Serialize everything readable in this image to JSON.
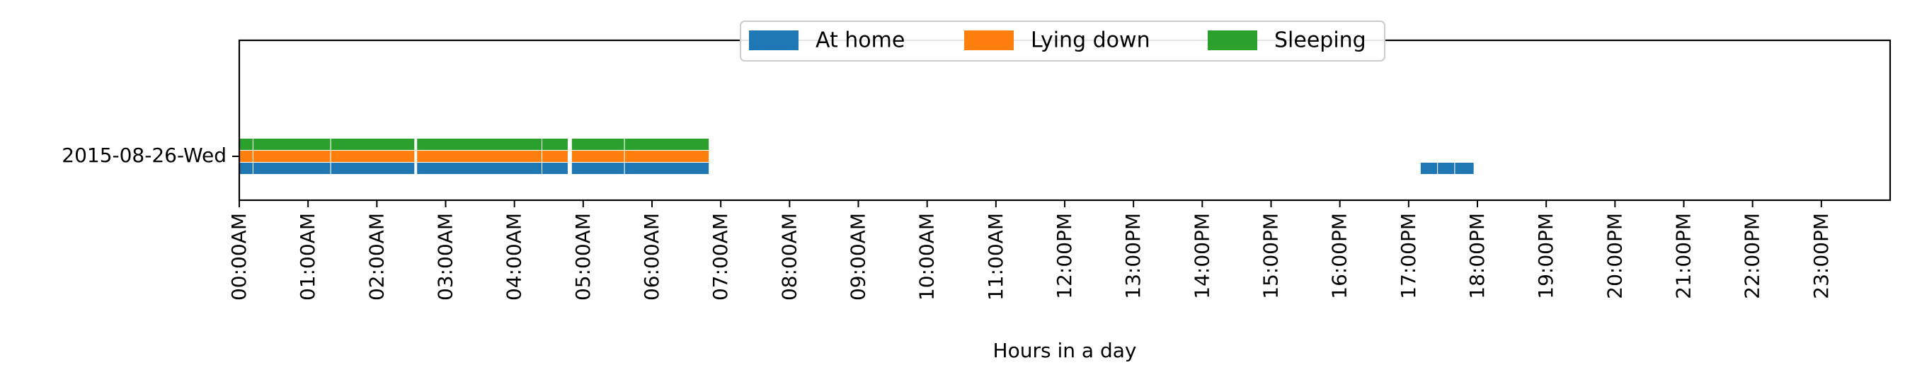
{
  "chart_data": {
    "type": "bar",
    "orientation": "horizontal-timeline",
    "xlabel": "Hours in a day",
    "ylabel": "",
    "xlim": [
      0,
      24
    ],
    "x_ticks": [
      0,
      1,
      2,
      3,
      4,
      5,
      6,
      7,
      8,
      9,
      10,
      11,
      12,
      13,
      14,
      15,
      16,
      17,
      18,
      19,
      20,
      21,
      22,
      23
    ],
    "x_tick_labels": [
      "00:00AM",
      "01:00AM",
      "02:00AM",
      "03:00AM",
      "04:00AM",
      "05:00AM",
      "06:00AM",
      "07:00AM",
      "08:00AM",
      "09:00AM",
      "10:00AM",
      "11:00AM",
      "12:00PM",
      "13:00PM",
      "14:00PM",
      "15:00PM",
      "16:00PM",
      "17:00PM",
      "18:00PM",
      "19:00PM",
      "20:00PM",
      "21:00PM",
      "22:00PM",
      "23:00PM"
    ],
    "categories": [
      "2015-08-26-Wed"
    ],
    "legend_position": "top-center",
    "grid": false,
    "series": [
      {
        "name": "At home",
        "color": "#1f77b4",
        "row": "2015-08-26-Wed",
        "intervals": [
          [
            0.0,
            0.2
          ],
          [
            0.2,
            1.33
          ],
          [
            1.33,
            2.55
          ],
          [
            2.58,
            4.4
          ],
          [
            4.4,
            4.78
          ],
          [
            4.83,
            5.6
          ],
          [
            5.6,
            6.83
          ],
          [
            17.17,
            17.42
          ],
          [
            17.42,
            17.67
          ],
          [
            17.67,
            17.95
          ]
        ]
      },
      {
        "name": "Lying down",
        "color": "#ff7f0e",
        "row": "2015-08-26-Wed",
        "intervals": [
          [
            0.0,
            0.2
          ],
          [
            0.2,
            1.33
          ],
          [
            1.33,
            2.55
          ],
          [
            2.58,
            4.4
          ],
          [
            4.4,
            4.78
          ],
          [
            4.83,
            5.6
          ],
          [
            5.6,
            6.83
          ]
        ]
      },
      {
        "name": "Sleeping",
        "color": "#2ca02c",
        "row": "2015-08-26-Wed",
        "intervals": [
          [
            0.0,
            0.2
          ],
          [
            0.2,
            1.33
          ],
          [
            1.33,
            2.55
          ],
          [
            2.58,
            4.4
          ],
          [
            4.4,
            4.78
          ],
          [
            4.83,
            5.6
          ],
          [
            5.6,
            6.83
          ]
        ]
      }
    ]
  }
}
